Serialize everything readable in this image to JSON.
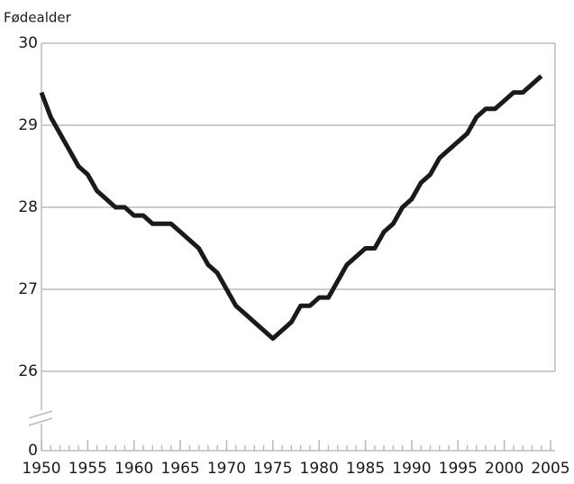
{
  "chart_data": {
    "type": "line",
    "ylabel": "Fødealder",
    "x": [
      1950,
      1951,
      1952,
      1953,
      1954,
      1955,
      1956,
      1957,
      1958,
      1959,
      1960,
      1961,
      1962,
      1963,
      1964,
      1965,
      1966,
      1967,
      1968,
      1969,
      1970,
      1971,
      1972,
      1973,
      1974,
      1975,
      1976,
      1977,
      1978,
      1979,
      1980,
      1981,
      1982,
      1983,
      1984,
      1985,
      1986,
      1987,
      1988,
      1989,
      1990,
      1991,
      1992,
      1993,
      1994,
      1995,
      1996,
      1997,
      1998,
      1999,
      2000,
      2001,
      2002,
      2003,
      2004
    ],
    "series": [
      {
        "color": "#1a1a1a",
        "values": [
          29.4,
          29.1,
          28.9,
          28.7,
          28.5,
          28.4,
          28.2,
          28.1,
          28.0,
          28.0,
          27.9,
          27.9,
          27.8,
          27.8,
          27.8,
          27.7,
          27.6,
          27.5,
          27.3,
          27.2,
          27.0,
          26.8,
          26.7,
          26.6,
          26.5,
          26.4,
          26.5,
          26.6,
          26.8,
          26.8,
          26.9,
          26.9,
          27.1,
          27.3,
          27.4,
          27.5,
          27.5,
          27.7,
          27.8,
          28.0,
          28.1,
          28.3,
          28.4,
          28.6,
          28.7,
          28.8,
          28.9,
          29.1,
          29.2,
          29.2,
          29.3,
          29.4,
          29.4,
          29.5,
          29.6
        ]
      }
    ],
    "xlim": [
      1950,
      2005
    ],
    "xticks": [
      1950,
      1955,
      1960,
      1965,
      1970,
      1975,
      1980,
      1985,
      1990,
      1995,
      2000,
      2005
    ],
    "ylim": [
      0,
      30
    ],
    "yticks": [
      0,
      26,
      27,
      28,
      29,
      30
    ],
    "y_axis_break": true,
    "grid": true
  }
}
